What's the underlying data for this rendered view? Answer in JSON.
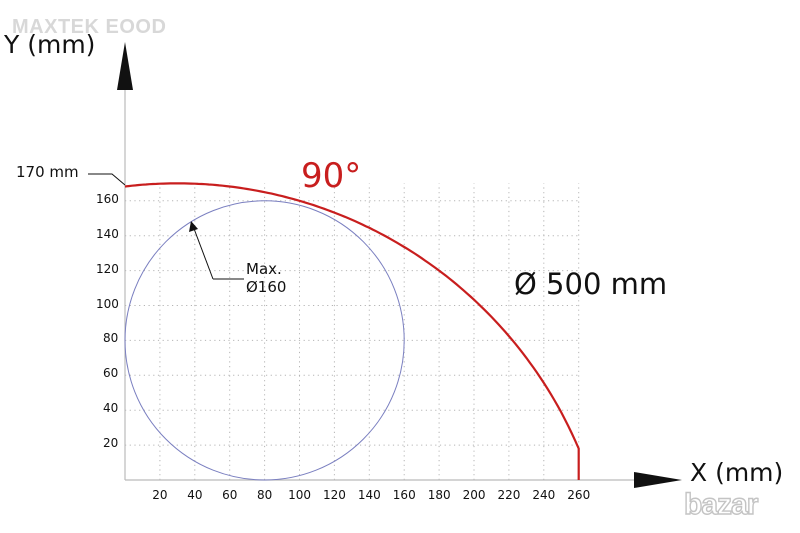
{
  "watermark": "MAXTEK EOOD",
  "axes": {
    "y_title": "Y (mm)",
    "x_title": "X (mm)",
    "x_ticks": [
      "20",
      "40",
      "60",
      "80",
      "100",
      "120",
      "140",
      "160",
      "180",
      "200",
      "220",
      "240",
      "260"
    ],
    "y_ticks": [
      "20",
      "40",
      "60",
      "80",
      "100",
      "120",
      "140",
      "160"
    ]
  },
  "annotations": {
    "angle_label": "90°",
    "diameter_label": "Ø 500 mm",
    "max_line1": "Max.",
    "max_line2": "Ø160",
    "y_extent_label": "170 mm"
  },
  "diagram": {
    "arc_max_x": 260,
    "arc_max_y": 170,
    "circle_diameter": 160,
    "circle_center_x": 80,
    "circle_center_y": 80
  },
  "colors": {
    "arc": "#c81e1e",
    "circle": "#7a7fc0",
    "grid": "#b5b5b5",
    "axis": "#222222"
  },
  "logo_text": "bazar"
}
